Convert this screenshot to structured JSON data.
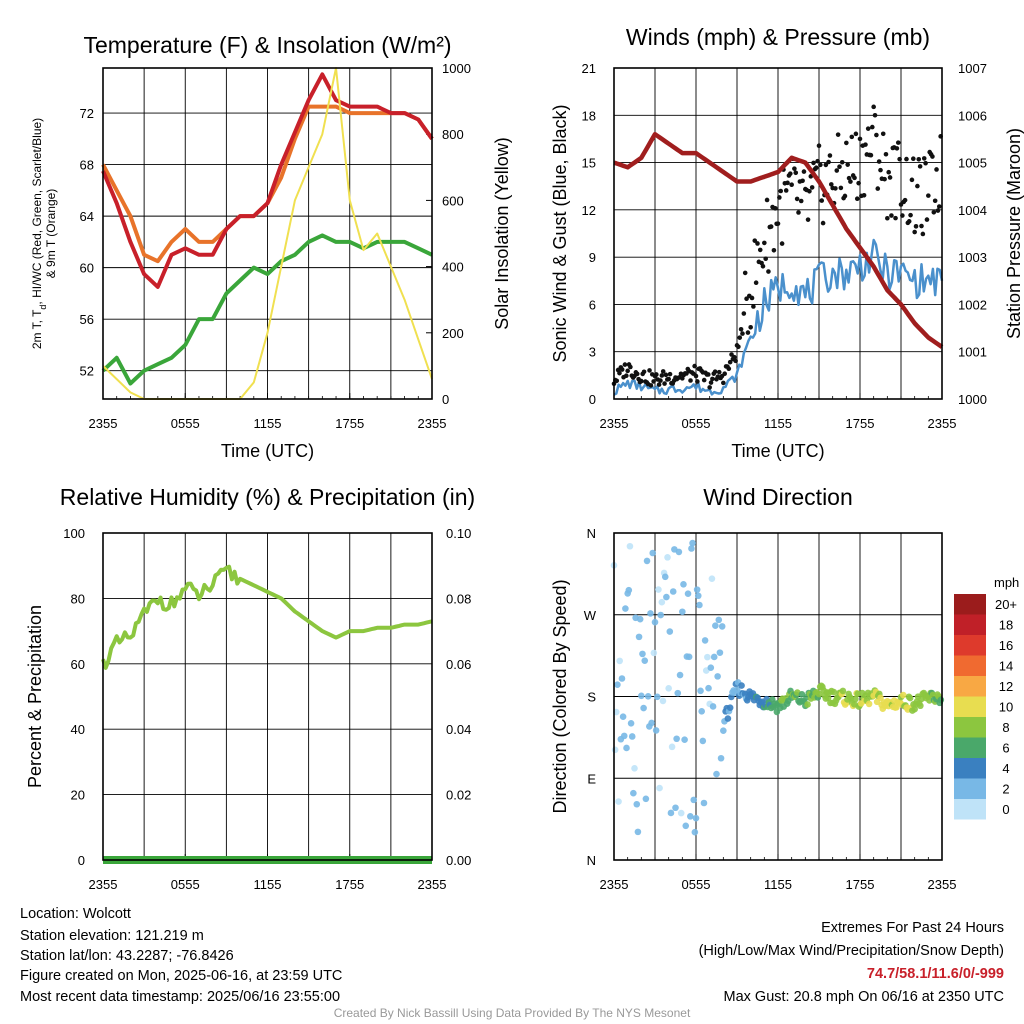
{
  "chart_data": [
    {
      "type": "line",
      "title": "Temperature (F) & Insolation (W/m²)",
      "xlabel": "Time (UTC)",
      "ylabel": "2m T, Td, HI/WC (Red, Green, Scarlet/Blue) & 9m T (Orange)",
      "ylabel_top": "2m T, T",
      "ylabel_sub": "d",
      "ylabel_bottom": ", HI/WC (Red, Green, Scarlet/Blue)",
      "ylabel_line2": "& 9m T (Orange)",
      "y2label": "Solar Insolation (Yellow)",
      "xticks": [
        "2355",
        "0555",
        "1155",
        "1755",
        "2355"
      ],
      "yticks": [
        52,
        56,
        60,
        64,
        68,
        72
      ],
      "y2ticks": [
        0,
        200,
        400,
        600,
        800,
        1000
      ],
      "ylim": [
        49.8,
        75.5
      ],
      "y2lim": [
        0,
        1000
      ],
      "grid": true,
      "x_hours": [
        0,
        1,
        2,
        3,
        4,
        5,
        6,
        7,
        8,
        9,
        10,
        11,
        12,
        13,
        14,
        15,
        16,
        17,
        18,
        19,
        20,
        21,
        22,
        23,
        24
      ],
      "series": [
        {
          "color": "#e8732a",
          "axis": "left",
          "values": [
            68,
            66,
            64,
            61,
            60.5,
            62,
            63,
            62,
            62,
            63,
            64,
            64,
            65,
            67,
            70,
            72.5,
            72.5,
            72.5,
            72,
            72,
            72,
            72,
            72,
            71.5,
            70
          ]
        },
        {
          "color": "#c8202a",
          "axis": "left",
          "values": [
            67.5,
            65,
            62,
            59.5,
            58.5,
            61,
            61.5,
            61,
            61,
            63,
            64,
            64,
            65,
            68,
            70.5,
            73,
            75,
            73,
            72.5,
            72.5,
            72.5,
            72,
            72,
            71.5,
            70
          ]
        },
        {
          "color": "#3aa63a",
          "axis": "left",
          "values": [
            52,
            53,
            51,
            52,
            52.5,
            53,
            54,
            56,
            56,
            58,
            59,
            60,
            59.5,
            60.5,
            61,
            62,
            62.5,
            62,
            62,
            61.5,
            62,
            62,
            62,
            61.5,
            61
          ]
        },
        {
          "color": "#f0e050",
          "axis": "right",
          "values": [
            100,
            60,
            20,
            0,
            0,
            0,
            0,
            0,
            0,
            0,
            0,
            50,
            200,
            400,
            600,
            700,
            800,
            1000,
            600,
            450,
            500,
            400,
            300,
            180,
            60
          ]
        }
      ]
    },
    {
      "type": "line",
      "title": "Winds (mph) & Pressure (mb)",
      "xlabel": "Time (UTC)",
      "ylabel": "Sonic Wind & Gust (Blue, Black)",
      "y2label": "Station Pressure (Maroon)",
      "xticks": [
        "2355",
        "0555",
        "1155",
        "1755",
        "2355"
      ],
      "yticks": [
        0,
        3,
        6,
        9,
        12,
        15,
        18,
        21
      ],
      "y2ticks": [
        1000,
        1001,
        1002,
        1003,
        1004,
        1005,
        1006,
        1007
      ],
      "ylim": [
        0,
        21
      ],
      "y2lim": [
        1000,
        1007
      ],
      "grid": true,
      "x_hours": [
        0,
        1,
        2,
        3,
        4,
        5,
        6,
        7,
        8,
        9,
        10,
        11,
        12,
        13,
        14,
        15,
        16,
        17,
        18,
        19,
        20,
        21,
        22,
        23,
        24
      ],
      "series": [
        {
          "color": "#4a90cc",
          "axis": "left",
          "values": [
            0.5,
            1,
            0.8,
            0.5,
            0.6,
            0.7,
            0.8,
            0.5,
            0.7,
            1.5,
            4,
            6,
            7,
            7.5,
            6.5,
            7.5,
            8,
            8,
            8.5,
            9,
            8,
            8,
            7.5,
            7.5,
            7.5
          ]
        },
        {
          "color": "#111111",
          "axis": "left",
          "type": "scatter",
          "values": [
            1.2,
            2,
            1.5,
            1.2,
            1.4,
            1.5,
            1.6,
            1.2,
            1.5,
            3,
            7,
            10,
            12,
            13,
            12,
            13.5,
            14,
            14.5,
            15,
            16.5,
            14,
            14,
            12.5,
            13,
            14.5
          ]
        },
        {
          "color": "#a01e1e",
          "axis": "right",
          "values": [
            1005,
            1004.9,
            1005.1,
            1005.6,
            1005.4,
            1005.2,
            1005.2,
            1005.0,
            1004.8,
            1004.6,
            1004.6,
            1004.7,
            1004.8,
            1005.1,
            1005.0,
            1004.6,
            1004.1,
            1003.6,
            1003.2,
            1002.8,
            1002.3,
            1002.0,
            1001.6,
            1001.3,
            1001.1
          ]
        }
      ]
    },
    {
      "type": "line",
      "title": "Relative Humidity (%) & Precipitation (in)",
      "ylabel": "Percent & Precipitation",
      "xticks": [
        "2355",
        "0555",
        "1155",
        "1755",
        "2355"
      ],
      "yticks": [
        0,
        20,
        40,
        60,
        80,
        100
      ],
      "y2ticks": [
        "0.00",
        "0.02",
        "0.04",
        "0.06",
        "0.08",
        "0.10"
      ],
      "ylim": [
        0,
        100
      ],
      "y2lim": [
        0,
        0.1
      ],
      "grid": true,
      "x_hours": [
        0,
        1,
        2,
        3,
        4,
        5,
        6,
        7,
        8,
        9,
        10,
        11,
        12,
        13,
        14,
        15,
        16,
        17,
        18,
        19,
        20,
        21,
        22,
        23,
        24
      ],
      "series": [
        {
          "color": "#8cc63f",
          "axis": "left",
          "values": [
            60,
            66,
            68,
            75,
            80,
            78,
            83,
            81,
            84,
            88,
            86,
            84,
            82,
            80,
            76,
            73,
            70,
            68,
            70,
            70,
            71,
            71,
            72,
            72,
            73
          ]
        },
        {
          "color": "#3aa63a",
          "axis": "right",
          "values": [
            0,
            0,
            0,
            0,
            0,
            0,
            0,
            0,
            0,
            0,
            0,
            0,
            0,
            0,
            0,
            0,
            0,
            0,
            0,
            0,
            0,
            0,
            0,
            0,
            0
          ]
        }
      ]
    },
    {
      "type": "scatter",
      "title": "Wind Direction",
      "ylabel": "Direction (Colored By Speed)",
      "xticks": [
        "2355",
        "0555",
        "1155",
        "1755",
        "2355"
      ],
      "yticks": [
        "N",
        "E",
        "S",
        "W",
        "N"
      ],
      "ylim": [
        0,
        360
      ],
      "grid": true,
      "legend": {
        "title": "mph",
        "labels": [
          "20+",
          "18",
          "16",
          "14",
          "12",
          "10",
          "8",
          "6",
          "4",
          "2",
          "0"
        ],
        "colors": [
          "#9b1c1c",
          "#c02028",
          "#de3a2c",
          "#f06a30",
          "#f8a844",
          "#e8dd50",
          "#8cc63f",
          "#4aa86a",
          "#3a80c0",
          "#78b8e6",
          "#bfe3f8"
        ],
        "placement": "right"
      },
      "x_hours": [
        0,
        1,
        2,
        3,
        4,
        5,
        6,
        7,
        8,
        9,
        10,
        11,
        12,
        13,
        14,
        15,
        16,
        17,
        18,
        19,
        20,
        21,
        22,
        23,
        24
      ],
      "direction_deg": [
        30,
        70,
        300,
        60,
        160,
        110,
        90,
        250,
        150,
        190,
        180,
        175,
        170,
        180,
        175,
        185,
        180,
        178,
        175,
        180,
        170,
        175,
        172,
        178,
        180
      ],
      "speed_mph": [
        1,
        1,
        2,
        1,
        1,
        2,
        2,
        1,
        3,
        3,
        4,
        5,
        6,
        7,
        6,
        8,
        8,
        9,
        8,
        9,
        10,
        9,
        8,
        8,
        7
      ]
    }
  ],
  "footer": {
    "location": "Location: Wolcott",
    "elevation": "Station elevation: 121.219 m",
    "latlon": "Station lat/lon: 43.2287; -76.8426",
    "created": "Figure created on Mon, 2025-06-16, at 23:59 UTC",
    "recent": "Most recent data timestamp: 2025/06/16 23:55:00",
    "extremes_title": "Extremes For Past 24 Hours",
    "extremes_legend": "(High/Low/Max Wind/Precipitation/Snow Depth)",
    "extremes_values": "74.7/58.1/11.6/0/-999",
    "max_gust": "Max Gust: 20.8 mph On 06/16 at 2350 UTC",
    "credit": "Created By Nick Bassill Using Data Provided By The NYS Mesonet"
  }
}
